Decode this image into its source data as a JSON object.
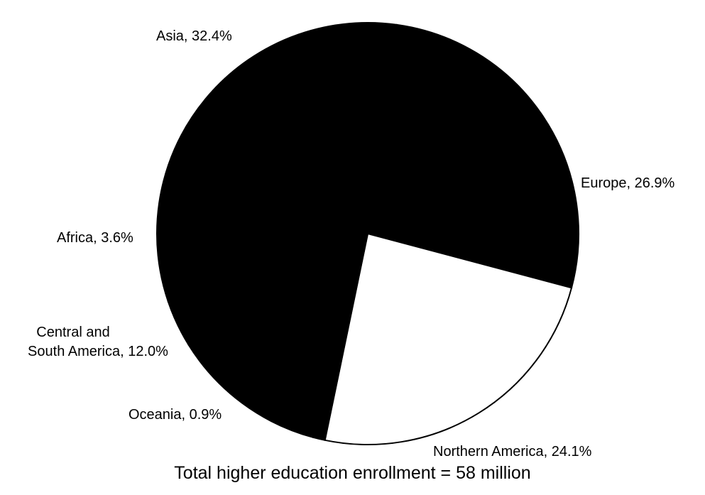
{
  "chart_data": {
    "type": "pie",
    "slices": [
      {
        "label": "Asia",
        "value": 32.4,
        "display": "Asia, 32.4%",
        "color": "#000000"
      },
      {
        "label": "Europe",
        "value": 26.9,
        "display": "Europe, 26.9%",
        "color": "#000000"
      },
      {
        "label": "Northern America",
        "value": 24.1,
        "display": "Northern America, 24.1%",
        "color": "#ffffff"
      },
      {
        "label": "Oceania",
        "value": 0.9,
        "display": "Oceania, 0.9%",
        "color": "#000000"
      },
      {
        "label": "Central and South America",
        "value": 12.0,
        "display_lines": [
          "Central and",
          "South America, 12.0%"
        ],
        "color": "#000000"
      },
      {
        "label": "Africa",
        "value": 3.6,
        "display": "Africa, 3.6%",
        "color": "#000000"
      }
    ],
    "caption": "Total higher education enrollment = 58 million"
  }
}
